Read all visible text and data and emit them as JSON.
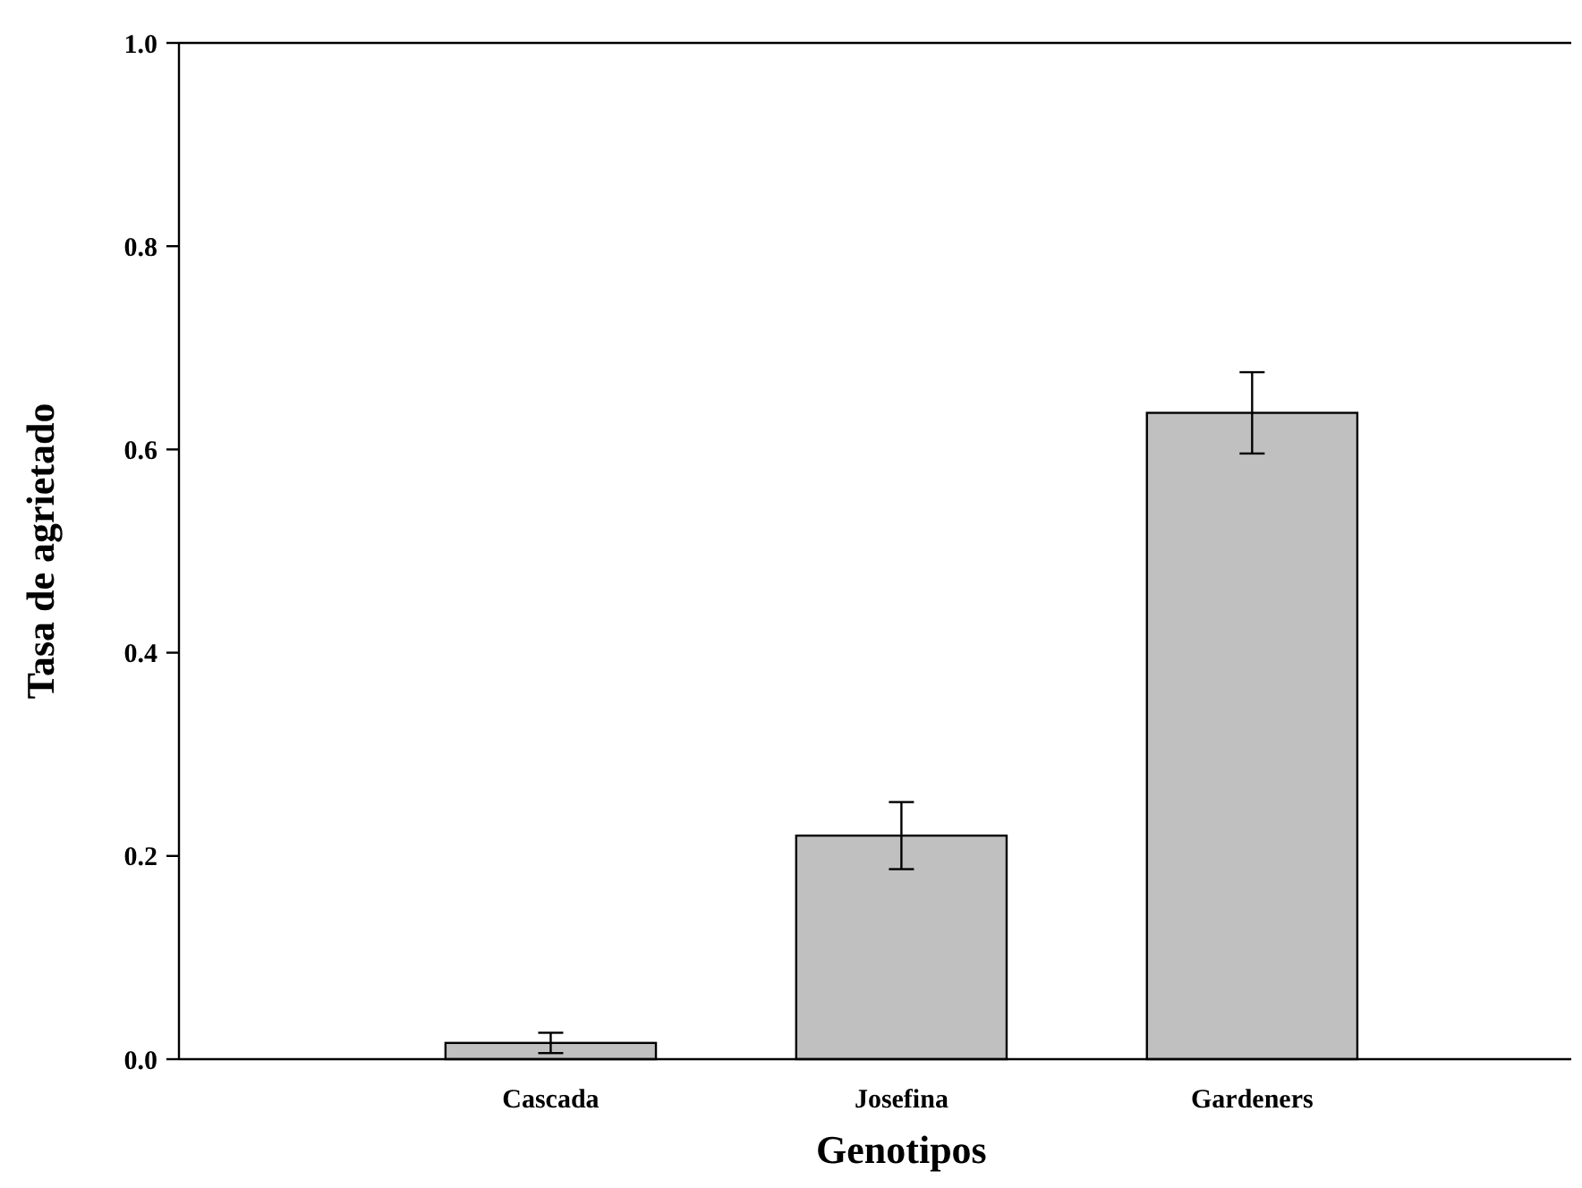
{
  "chart_data": {
    "type": "bar",
    "xlabel": "Genotipos",
    "ylabel": "Tasa de agrietado",
    "categories": [
      "Cascada",
      "Josefina",
      "Gardeners"
    ],
    "values": [
      0.016,
      0.22,
      0.636
    ],
    "errors": [
      0.01,
      0.033,
      0.04
    ],
    "color": "#c0c0c0",
    "ylim": [
      0,
      1
    ],
    "yticks": [
      {
        "value": 0,
        "label": "0.0"
      },
      {
        "value": 0.2,
        "label": "0.2"
      },
      {
        "value": 0.4,
        "label": "0.4"
      },
      {
        "value": 0.6,
        "label": "0.6"
      },
      {
        "value": 0.8,
        "label": "0.8"
      },
      {
        "value": 1,
        "label": "1.0"
      }
    ],
    "grid": false
  }
}
